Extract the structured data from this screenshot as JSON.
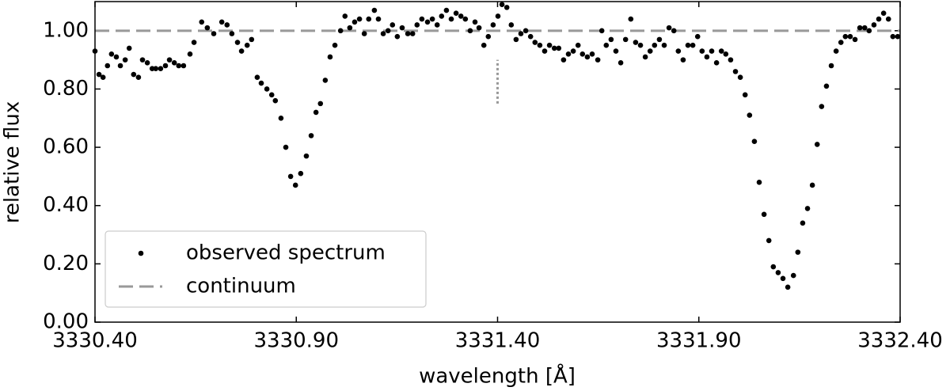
{
  "chart_data": {
    "type": "scatter",
    "xlabel": "wavelength [Å]",
    "ylabel": "relative flux",
    "xlim": [
      3330.4,
      3332.4
    ],
    "ylim": [
      0,
      1.1
    ],
    "xticks": [
      {
        "value": 3330.4,
        "label": "3330.40"
      },
      {
        "value": 3330.9,
        "label": "3330.90"
      },
      {
        "value": 3331.4,
        "label": "3331.40"
      },
      {
        "value": 3331.9,
        "label": "3331.90"
      },
      {
        "value": 3332.4,
        "label": "3332.40"
      }
    ],
    "yticks": [
      {
        "value": 0,
        "label": "0.00"
      },
      {
        "value": 0.2,
        "label": "0.20"
      },
      {
        "value": 0.4,
        "label": "0.40"
      },
      {
        "value": 0.6,
        "label": "0.60"
      },
      {
        "value": 0.8,
        "label": "0.80"
      },
      {
        "value": 1.0,
        "label": "1.00"
      }
    ],
    "legend_loc": "lower left",
    "series": [
      {
        "name": "observed spectrum",
        "kind": "scatter",
        "color": "#000000",
        "x": [
          3330.4,
          3330.41,
          3330.42,
          3330.431,
          3330.441,
          3330.453,
          3330.463,
          3330.475,
          3330.485,
          3330.496,
          3330.508,
          3330.518,
          3330.53,
          3330.542,
          3330.551,
          3330.563,
          3330.575,
          3330.585,
          3330.597,
          3330.608,
          3330.62,
          3330.636,
          3330.646,
          3330.665,
          3330.679,
          3330.695,
          3330.715,
          3330.728,
          3330.74,
          3330.754,
          3330.764,
          3330.778,
          3330.789,
          3330.803,
          3330.813,
          3330.827,
          3330.839,
          3330.848,
          3330.862,
          3330.874,
          3330.886,
          3330.898,
          3330.911,
          3330.925,
          3330.937,
          3330.949,
          3330.96,
          3330.972,
          3330.984,
          3330.996,
          3331.01,
          3331.021,
          3331.033,
          3331.045,
          3331.057,
          3331.069,
          3331.08,
          3331.094,
          3331.104,
          3331.116,
          3331.128,
          3331.139,
          3331.151,
          3331.163,
          3331.177,
          3331.189,
          3331.2,
          3331.212,
          3331.226,
          3331.238,
          3331.25,
          3331.261,
          3331.273,
          3331.285,
          3331.297,
          3331.309,
          3331.32,
          3331.332,
          3331.344,
          3331.354,
          3331.366,
          3331.377,
          3331.389,
          3331.401,
          3331.411,
          3331.423,
          3331.434,
          3331.446,
          3331.458,
          3331.47,
          3331.482,
          3331.493,
          3331.505,
          3331.517,
          3331.529,
          3331.541,
          3331.552,
          3331.564,
          3331.576,
          3331.588,
          3331.6,
          3331.611,
          3331.623,
          3331.635,
          3331.649,
          3331.659,
          3331.67,
          3331.682,
          3331.694,
          3331.706,
          3331.718,
          3331.731,
          3331.743,
          3331.755,
          3331.767,
          3331.779,
          3331.79,
          3331.802,
          3331.814,
          3331.826,
          3331.838,
          3331.849,
          3331.861,
          3331.873,
          3331.885,
          3331.897,
          3331.908,
          3331.92,
          3331.932,
          3331.944,
          3331.956,
          3331.967,
          3331.979,
          3331.991,
          3332.003,
          3332.015,
          3332.026,
          3332.038,
          3332.05,
          3332.062,
          3332.074,
          3332.085,
          3332.097,
          3332.109,
          3332.121,
          3332.135,
          3332.146,
          3332.158,
          3332.17,
          3332.182,
          3332.194,
          3332.205,
          3332.217,
          3332.229,
          3332.241,
          3332.253,
          3332.264,
          3332.276,
          3332.288,
          3332.3,
          3332.312,
          3332.323,
          3332.335,
          3332.347,
          3332.359,
          3332.371,
          3332.382,
          3332.394
        ],
        "values": [
          0.93,
          0.85,
          0.84,
          0.88,
          0.92,
          0.91,
          0.88,
          0.9,
          0.94,
          0.85,
          0.84,
          0.9,
          0.89,
          0.87,
          0.87,
          0.87,
          0.88,
          0.9,
          0.89,
          0.88,
          0.88,
          0.92,
          0.96,
          1.03,
          1.01,
          0.99,
          1.03,
          1.02,
          0.99,
          0.96,
          0.93,
          0.95,
          0.97,
          0.84,
          0.82,
          0.8,
          0.78,
          0.76,
          0.7,
          0.6,
          0.5,
          0.47,
          0.51,
          0.57,
          0.64,
          0.72,
          0.75,
          0.83,
          0.91,
          0.95,
          1.0,
          1.05,
          1.01,
          1.03,
          1.04,
          0.99,
          1.04,
          1.07,
          1.04,
          0.99,
          1.0,
          1.02,
          0.98,
          1.01,
          0.99,
          0.99,
          1.02,
          1.04,
          1.03,
          1.04,
          1.02,
          1.05,
          1.07,
          1.04,
          1.06,
          1.05,
          1.04,
          1.0,
          1.03,
          1.01,
          0.95,
          0.98,
          1.02,
          1.05,
          1.09,
          1.08,
          1.02,
          0.97,
          0.99,
          1.0,
          0.98,
          0.96,
          0.95,
          0.93,
          0.95,
          0.94,
          0.94,
          0.9,
          0.92,
          0.93,
          0.95,
          0.92,
          0.91,
          0.92,
          0.9,
          1.0,
          0.95,
          0.97,
          0.93,
          0.89,
          0.97,
          1.04,
          0.96,
          0.95,
          0.91,
          0.93,
          0.95,
          0.97,
          0.95,
          1.01,
          1.0,
          0.93,
          0.9,
          0.95,
          0.95,
          0.98,
          0.93,
          0.91,
          0.93,
          0.89,
          0.93,
          0.92,
          0.9,
          0.86,
          0.84,
          0.78,
          0.71,
          0.62,
          0.48,
          0.37,
          0.28,
          0.19,
          0.17,
          0.15,
          0.12,
          0.16,
          0.24,
          0.34,
          0.39,
          0.47,
          0.61,
          0.74,
          0.81,
          0.88,
          0.93,
          0.96,
          0.98,
          0.98,
          0.97,
          1.01,
          1.01,
          1.0,
          1.02,
          1.04,
          1.06,
          1.04,
          0.98,
          0.98
        ]
      },
      {
        "name": "continuum",
        "kind": "line",
        "style": "dashed",
        "color": "#999999",
        "x": [
          3330.4,
          3332.4
        ],
        "values": [
          1.0,
          1.0
        ]
      }
    ],
    "line_marker": {
      "x": 3331.4,
      "y": [
        0.75,
        0.9
      ],
      "style": "dotted",
      "color": "#999999"
    }
  }
}
